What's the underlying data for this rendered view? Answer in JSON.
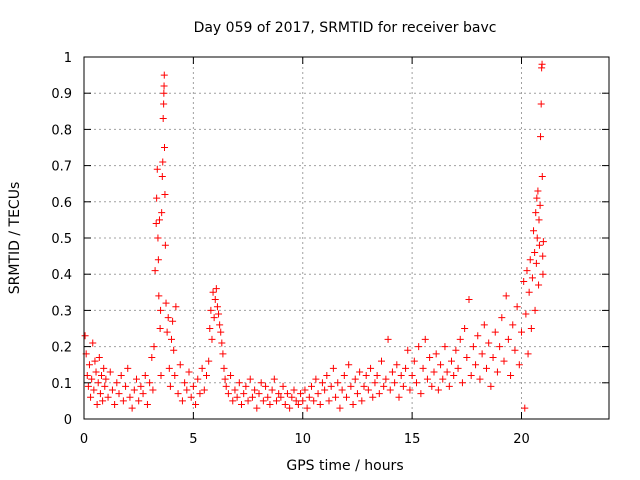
{
  "chart_data": {
    "type": "scatter",
    "title": "Day 059 of 2017, SRMTID for receiver bavc",
    "xlabel": "GPS time / hours",
    "ylabel": "SRMTID / TECUs",
    "xlim": [
      0,
      24
    ],
    "ylim": [
      0,
      1
    ],
    "x_ticks": [
      0,
      5,
      10,
      15,
      20
    ],
    "x_tick_labels": [
      "0",
      "5",
      "10",
      "15",
      "20"
    ],
    "y_ticks": [
      0,
      0.1,
      0.2,
      0.3,
      0.4,
      0.5,
      0.6,
      0.7,
      0.8,
      0.9,
      1
    ],
    "y_tick_labels": [
      "0",
      "0.1",
      "0.2",
      "0.3",
      "0.4",
      "0.5",
      "0.6",
      "0.7",
      "0.8",
      "0.9",
      "1"
    ],
    "grid": true,
    "marker": "+",
    "color": "#ff0000",
    "series": [
      {
        "name": "SRMTID",
        "points": [
          [
            0.05,
            0.23
          ],
          [
            0.1,
            0.18
          ],
          [
            0.15,
            0.12
          ],
          [
            0.2,
            0.09
          ],
          [
            0.25,
            0.15
          ],
          [
            0.3,
            0.06
          ],
          [
            0.35,
            0.11
          ],
          [
            0.4,
            0.21
          ],
          [
            0.45,
            0.08
          ],
          [
            0.5,
            0.16
          ],
          [
            0.55,
            0.13
          ],
          [
            0.6,
            0.04
          ],
          [
            0.65,
            0.1
          ],
          [
            0.7,
            0.17
          ],
          [
            0.75,
            0.07
          ],
          [
            0.8,
            0.12
          ],
          [
            0.85,
            0.05
          ],
          [
            0.9,
            0.14
          ],
          [
            0.95,
            0.09
          ],
          [
            1.0,
            0.11
          ],
          [
            1.1,
            0.06
          ],
          [
            1.2,
            0.13
          ],
          [
            1.3,
            0.08
          ],
          [
            1.4,
            0.04
          ],
          [
            1.5,
            0.1
          ],
          [
            1.6,
            0.07
          ],
          [
            1.7,
            0.12
          ],
          [
            1.8,
            0.05
          ],
          [
            1.9,
            0.09
          ],
          [
            2.0,
            0.14
          ],
          [
            2.1,
            0.06
          ],
          [
            2.2,
            0.03
          ],
          [
            2.3,
            0.08
          ],
          [
            2.4,
            0.11
          ],
          [
            2.5,
            0.05
          ],
          [
            2.6,
            0.09
          ],
          [
            2.7,
            0.07
          ],
          [
            2.8,
            0.12
          ],
          [
            2.9,
            0.04
          ],
          [
            3.0,
            0.1
          ],
          [
            3.1,
            0.17
          ],
          [
            3.15,
            0.08
          ],
          [
            3.2,
            0.2
          ],
          [
            3.25,
            0.41
          ],
          [
            3.3,
            0.54
          ],
          [
            3.32,
            0.61
          ],
          [
            3.35,
            0.69
          ],
          [
            3.38,
            0.5
          ],
          [
            3.4,
            0.44
          ],
          [
            3.42,
            0.34
          ],
          [
            3.45,
            0.55
          ],
          [
            3.48,
            0.25
          ],
          [
            3.5,
            0.3
          ],
          [
            3.52,
            0.12
          ],
          [
            3.55,
            0.57
          ],
          [
            3.58,
            0.67
          ],
          [
            3.6,
            0.71
          ],
          [
            3.62,
            0.83
          ],
          [
            3.64,
            0.87
          ],
          [
            3.65,
            0.9
          ],
          [
            3.66,
            0.92
          ],
          [
            3.67,
            0.95
          ],
          [
            3.68,
            0.75
          ],
          [
            3.7,
            0.62
          ],
          [
            3.72,
            0.48
          ],
          [
            3.75,
            0.32
          ],
          [
            3.8,
            0.24
          ],
          [
            3.85,
            0.28
          ],
          [
            3.9,
            0.14
          ],
          [
            3.95,
            0.09
          ],
          [
            4.0,
            0.22
          ],
          [
            4.05,
            0.27
          ],
          [
            4.1,
            0.19
          ],
          [
            4.15,
            0.12
          ],
          [
            4.2,
            0.31
          ],
          [
            4.3,
            0.07
          ],
          [
            4.4,
            0.15
          ],
          [
            4.5,
            0.05
          ],
          [
            4.6,
            0.1
          ],
          [
            4.7,
            0.08
          ],
          [
            4.8,
            0.13
          ],
          [
            4.9,
            0.06
          ],
          [
            5.0,
            0.09
          ],
          [
            5.1,
            0.04
          ],
          [
            5.2,
            0.11
          ],
          [
            5.3,
            0.07
          ],
          [
            5.4,
            0.14
          ],
          [
            5.5,
            0.08
          ],
          [
            5.6,
            0.12
          ],
          [
            5.7,
            0.16
          ],
          [
            5.75,
            0.25
          ],
          [
            5.8,
            0.3
          ],
          [
            5.85,
            0.22
          ],
          [
            5.9,
            0.35
          ],
          [
            5.95,
            0.28
          ],
          [
            6.0,
            0.33
          ],
          [
            6.05,
            0.36
          ],
          [
            6.1,
            0.31
          ],
          [
            6.15,
            0.29
          ],
          [
            6.2,
            0.26
          ],
          [
            6.25,
            0.24
          ],
          [
            6.3,
            0.21
          ],
          [
            6.35,
            0.18
          ],
          [
            6.4,
            0.14
          ],
          [
            6.45,
            0.11
          ],
          [
            6.5,
            0.09
          ],
          [
            6.6,
            0.07
          ],
          [
            6.7,
            0.12
          ],
          [
            6.8,
            0.05
          ],
          [
            6.9,
            0.08
          ],
          [
            7.0,
            0.06
          ],
          [
            7.1,
            0.1
          ],
          [
            7.2,
            0.04
          ],
          [
            7.3,
            0.07
          ],
          [
            7.4,
            0.09
          ],
          [
            7.5,
            0.05
          ],
          [
            7.6,
            0.11
          ],
          [
            7.7,
            0.06
          ],
          [
            7.8,
            0.08
          ],
          [
            7.9,
            0.03
          ],
          [
            8.0,
            0.07
          ],
          [
            8.1,
            0.1
          ],
          [
            8.2,
            0.05
          ],
          [
            8.3,
            0.09
          ],
          [
            8.4,
            0.06
          ],
          [
            8.5,
            0.04
          ],
          [
            8.6,
            0.08
          ],
          [
            8.7,
            0.11
          ],
          [
            8.8,
            0.05
          ],
          [
            8.9,
            0.07
          ],
          [
            9.0,
            0.06
          ],
          [
            9.1,
            0.09
          ],
          [
            9.2,
            0.04
          ],
          [
            9.3,
            0.07
          ],
          [
            9.4,
            0.03
          ],
          [
            9.5,
            0.06
          ],
          [
            9.6,
            0.08
          ],
          [
            9.7,
            0.05
          ],
          [
            9.8,
            0.04
          ],
          [
            9.9,
            0.07
          ],
          [
            10.0,
            0.05
          ],
          [
            10.1,
            0.08
          ],
          [
            10.2,
            0.03
          ],
          [
            10.3,
            0.06
          ],
          [
            10.4,
            0.09
          ],
          [
            10.5,
            0.05
          ],
          [
            10.6,
            0.11
          ],
          [
            10.7,
            0.07
          ],
          [
            10.8,
            0.04
          ],
          [
            10.9,
            0.1
          ],
          [
            11.0,
            0.08
          ],
          [
            11.1,
            0.12
          ],
          [
            11.2,
            0.05
          ],
          [
            11.3,
            0.09
          ],
          [
            11.4,
            0.14
          ],
          [
            11.5,
            0.06
          ],
          [
            11.6,
            0.1
          ],
          [
            11.7,
            0.03
          ],
          [
            11.8,
            0.08
          ],
          [
            11.9,
            0.12
          ],
          [
            12.0,
            0.06
          ],
          [
            12.1,
            0.15
          ],
          [
            12.2,
            0.09
          ],
          [
            12.3,
            0.04
          ],
          [
            12.4,
            0.11
          ],
          [
            12.5,
            0.07
          ],
          [
            12.6,
            0.13
          ],
          [
            12.7,
            0.05
          ],
          [
            12.8,
            0.09
          ],
          [
            12.9,
            0.12
          ],
          [
            13.0,
            0.08
          ],
          [
            13.1,
            0.14
          ],
          [
            13.2,
            0.06
          ],
          [
            13.3,
            0.1
          ],
          [
            13.4,
            0.12
          ],
          [
            13.5,
            0.07
          ],
          [
            13.6,
            0.16
          ],
          [
            13.7,
            0.09
          ],
          [
            13.8,
            0.11
          ],
          [
            13.9,
            0.22
          ],
          [
            14.0,
            0.08
          ],
          [
            14.1,
            0.13
          ],
          [
            14.2,
            0.1
          ],
          [
            14.3,
            0.15
          ],
          [
            14.4,
            0.06
          ],
          [
            14.5,
            0.12
          ],
          [
            14.6,
            0.09
          ],
          [
            14.7,
            0.14
          ],
          [
            14.8,
            0.19
          ],
          [
            14.9,
            0.08
          ],
          [
            15.0,
            0.12
          ],
          [
            15.1,
            0.16
          ],
          [
            15.2,
            0.1
          ],
          [
            15.3,
            0.2
          ],
          [
            15.4,
            0.07
          ],
          [
            15.5,
            0.14
          ],
          [
            15.6,
            0.22
          ],
          [
            15.7,
            0.11
          ],
          [
            15.8,
            0.17
          ],
          [
            15.9,
            0.09
          ],
          [
            16.0,
            0.13
          ],
          [
            16.1,
            0.18
          ],
          [
            16.2,
            0.08
          ],
          [
            16.3,
            0.15
          ],
          [
            16.4,
            0.11
          ],
          [
            16.5,
            0.2
          ],
          [
            16.6,
            0.13
          ],
          [
            16.7,
            0.09
          ],
          [
            16.8,
            0.16
          ],
          [
            16.9,
            0.12
          ],
          [
            17.0,
            0.19
          ],
          [
            17.1,
            0.14
          ],
          [
            17.2,
            0.22
          ],
          [
            17.3,
            0.1
          ],
          [
            17.4,
            0.25
          ],
          [
            17.5,
            0.17
          ],
          [
            17.6,
            0.33
          ],
          [
            17.7,
            0.12
          ],
          [
            17.8,
            0.2
          ],
          [
            17.9,
            0.15
          ],
          [
            18.0,
            0.23
          ],
          [
            18.1,
            0.11
          ],
          [
            18.2,
            0.18
          ],
          [
            18.3,
            0.26
          ],
          [
            18.4,
            0.14
          ],
          [
            18.5,
            0.21
          ],
          [
            18.6,
            0.09
          ],
          [
            18.7,
            0.17
          ],
          [
            18.8,
            0.24
          ],
          [
            18.9,
            0.13
          ],
          [
            19.0,
            0.2
          ],
          [
            19.1,
            0.28
          ],
          [
            19.2,
            0.16
          ],
          [
            19.3,
            0.34
          ],
          [
            19.4,
            0.22
          ],
          [
            19.5,
            0.12
          ],
          [
            19.6,
            0.26
          ],
          [
            19.7,
            0.19
          ],
          [
            19.8,
            0.31
          ],
          [
            19.9,
            0.15
          ],
          [
            20.0,
            0.24
          ],
          [
            20.1,
            0.38
          ],
          [
            20.15,
            0.03
          ],
          [
            20.2,
            0.29
          ],
          [
            20.25,
            0.41
          ],
          [
            20.3,
            0.18
          ],
          [
            20.35,
            0.35
          ],
          [
            20.4,
            0.44
          ],
          [
            20.45,
            0.25
          ],
          [
            20.5,
            0.39
          ],
          [
            20.55,
            0.52
          ],
          [
            20.6,
            0.46
          ],
          [
            20.62,
            0.3
          ],
          [
            20.65,
            0.57
          ],
          [
            20.68,
            0.43
          ],
          [
            20.7,
            0.61
          ],
          [
            20.72,
            0.5
          ],
          [
            20.75,
            0.63
          ],
          [
            20.78,
            0.37
          ],
          [
            20.8,
            0.55
          ],
          [
            20.82,
            0.48
          ],
          [
            20.85,
            0.59
          ],
          [
            20.87,
            0.78
          ],
          [
            20.9,
            0.87
          ],
          [
            20.92,
            0.97
          ],
          [
            20.94,
            0.98
          ],
          [
            20.95,
            0.67
          ],
          [
            20.97,
            0.45
          ],
          [
            20.98,
            0.4
          ],
          [
            21.0,
            0.49
          ]
        ]
      }
    ]
  }
}
